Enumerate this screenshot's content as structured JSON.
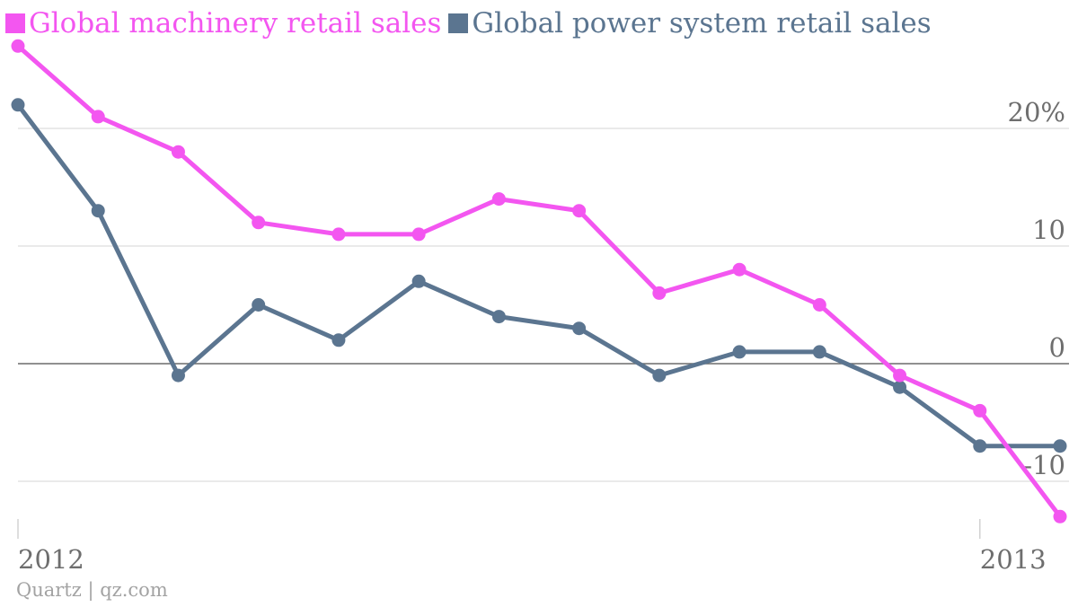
{
  "chart_data": {
    "type": "line",
    "title": "",
    "xlabel": "",
    "ylabel": "",
    "x_tick_labels": [
      "2012",
      "2013"
    ],
    "y_ticks": [
      {
        "value": 20,
        "label": "20%"
      },
      {
        "value": 10,
        "label": "10"
      },
      {
        "value": 0,
        "label": "0"
      },
      {
        "value": -10,
        "label": "-10"
      }
    ],
    "ylim": [
      -14,
      28
    ],
    "points_per_series": 14,
    "legend_position": "top-left",
    "grid": true,
    "series": [
      {
        "name": "Global machinery retail sales",
        "color": "#f356f0",
        "values": [
          27,
          21,
          18,
          12,
          11,
          11,
          14,
          13,
          6,
          8,
          5,
          -1,
          -4,
          -13
        ]
      },
      {
        "name": "Global power system retail sales",
        "color": "#5b7590",
        "values": [
          22,
          13,
          -1,
          5,
          2,
          7,
          4,
          3,
          -1,
          1,
          1,
          -2,
          -7,
          -7
        ]
      }
    ]
  },
  "legend": {
    "machinery_label": "Global machinery retail sales",
    "power_label": "Global power system retail sales",
    "machinery_color": "#f356f0",
    "power_color": "#5b7590"
  },
  "source_text": "Quartz | qz.com"
}
